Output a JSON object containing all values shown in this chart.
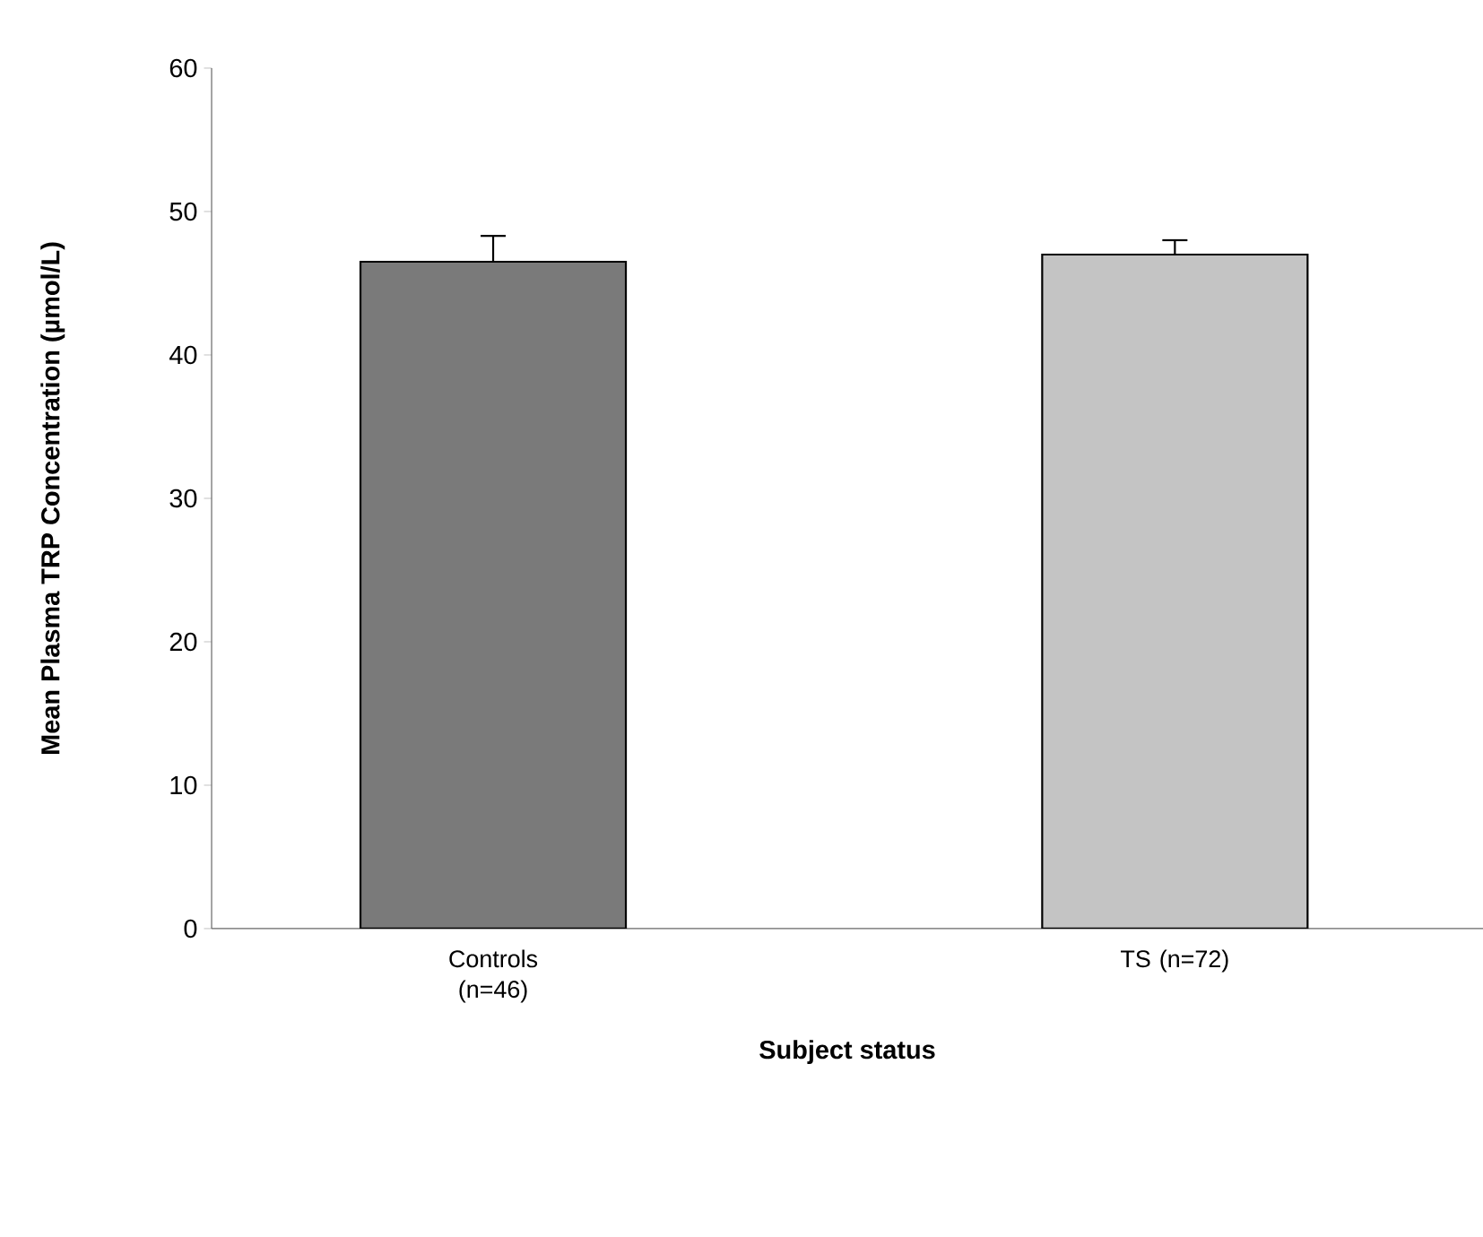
{
  "chart_data": {
    "type": "bar",
    "xlabel": "Subject status",
    "ylabel": "Mean Plasma TRP Concentration (µmol/L)",
    "categories": [
      "Controls (n=46)",
      "TS (n=72)"
    ],
    "values": [
      46.5,
      47.0
    ],
    "errors": [
      1.8,
      1.0
    ],
    "colors": [
      "#7a7a7a",
      "#c4c4c4"
    ],
    "ylim": [
      0,
      60
    ],
    "yticks": [
      0,
      10,
      20,
      30,
      40,
      50,
      60
    ],
    "grid": false
  }
}
